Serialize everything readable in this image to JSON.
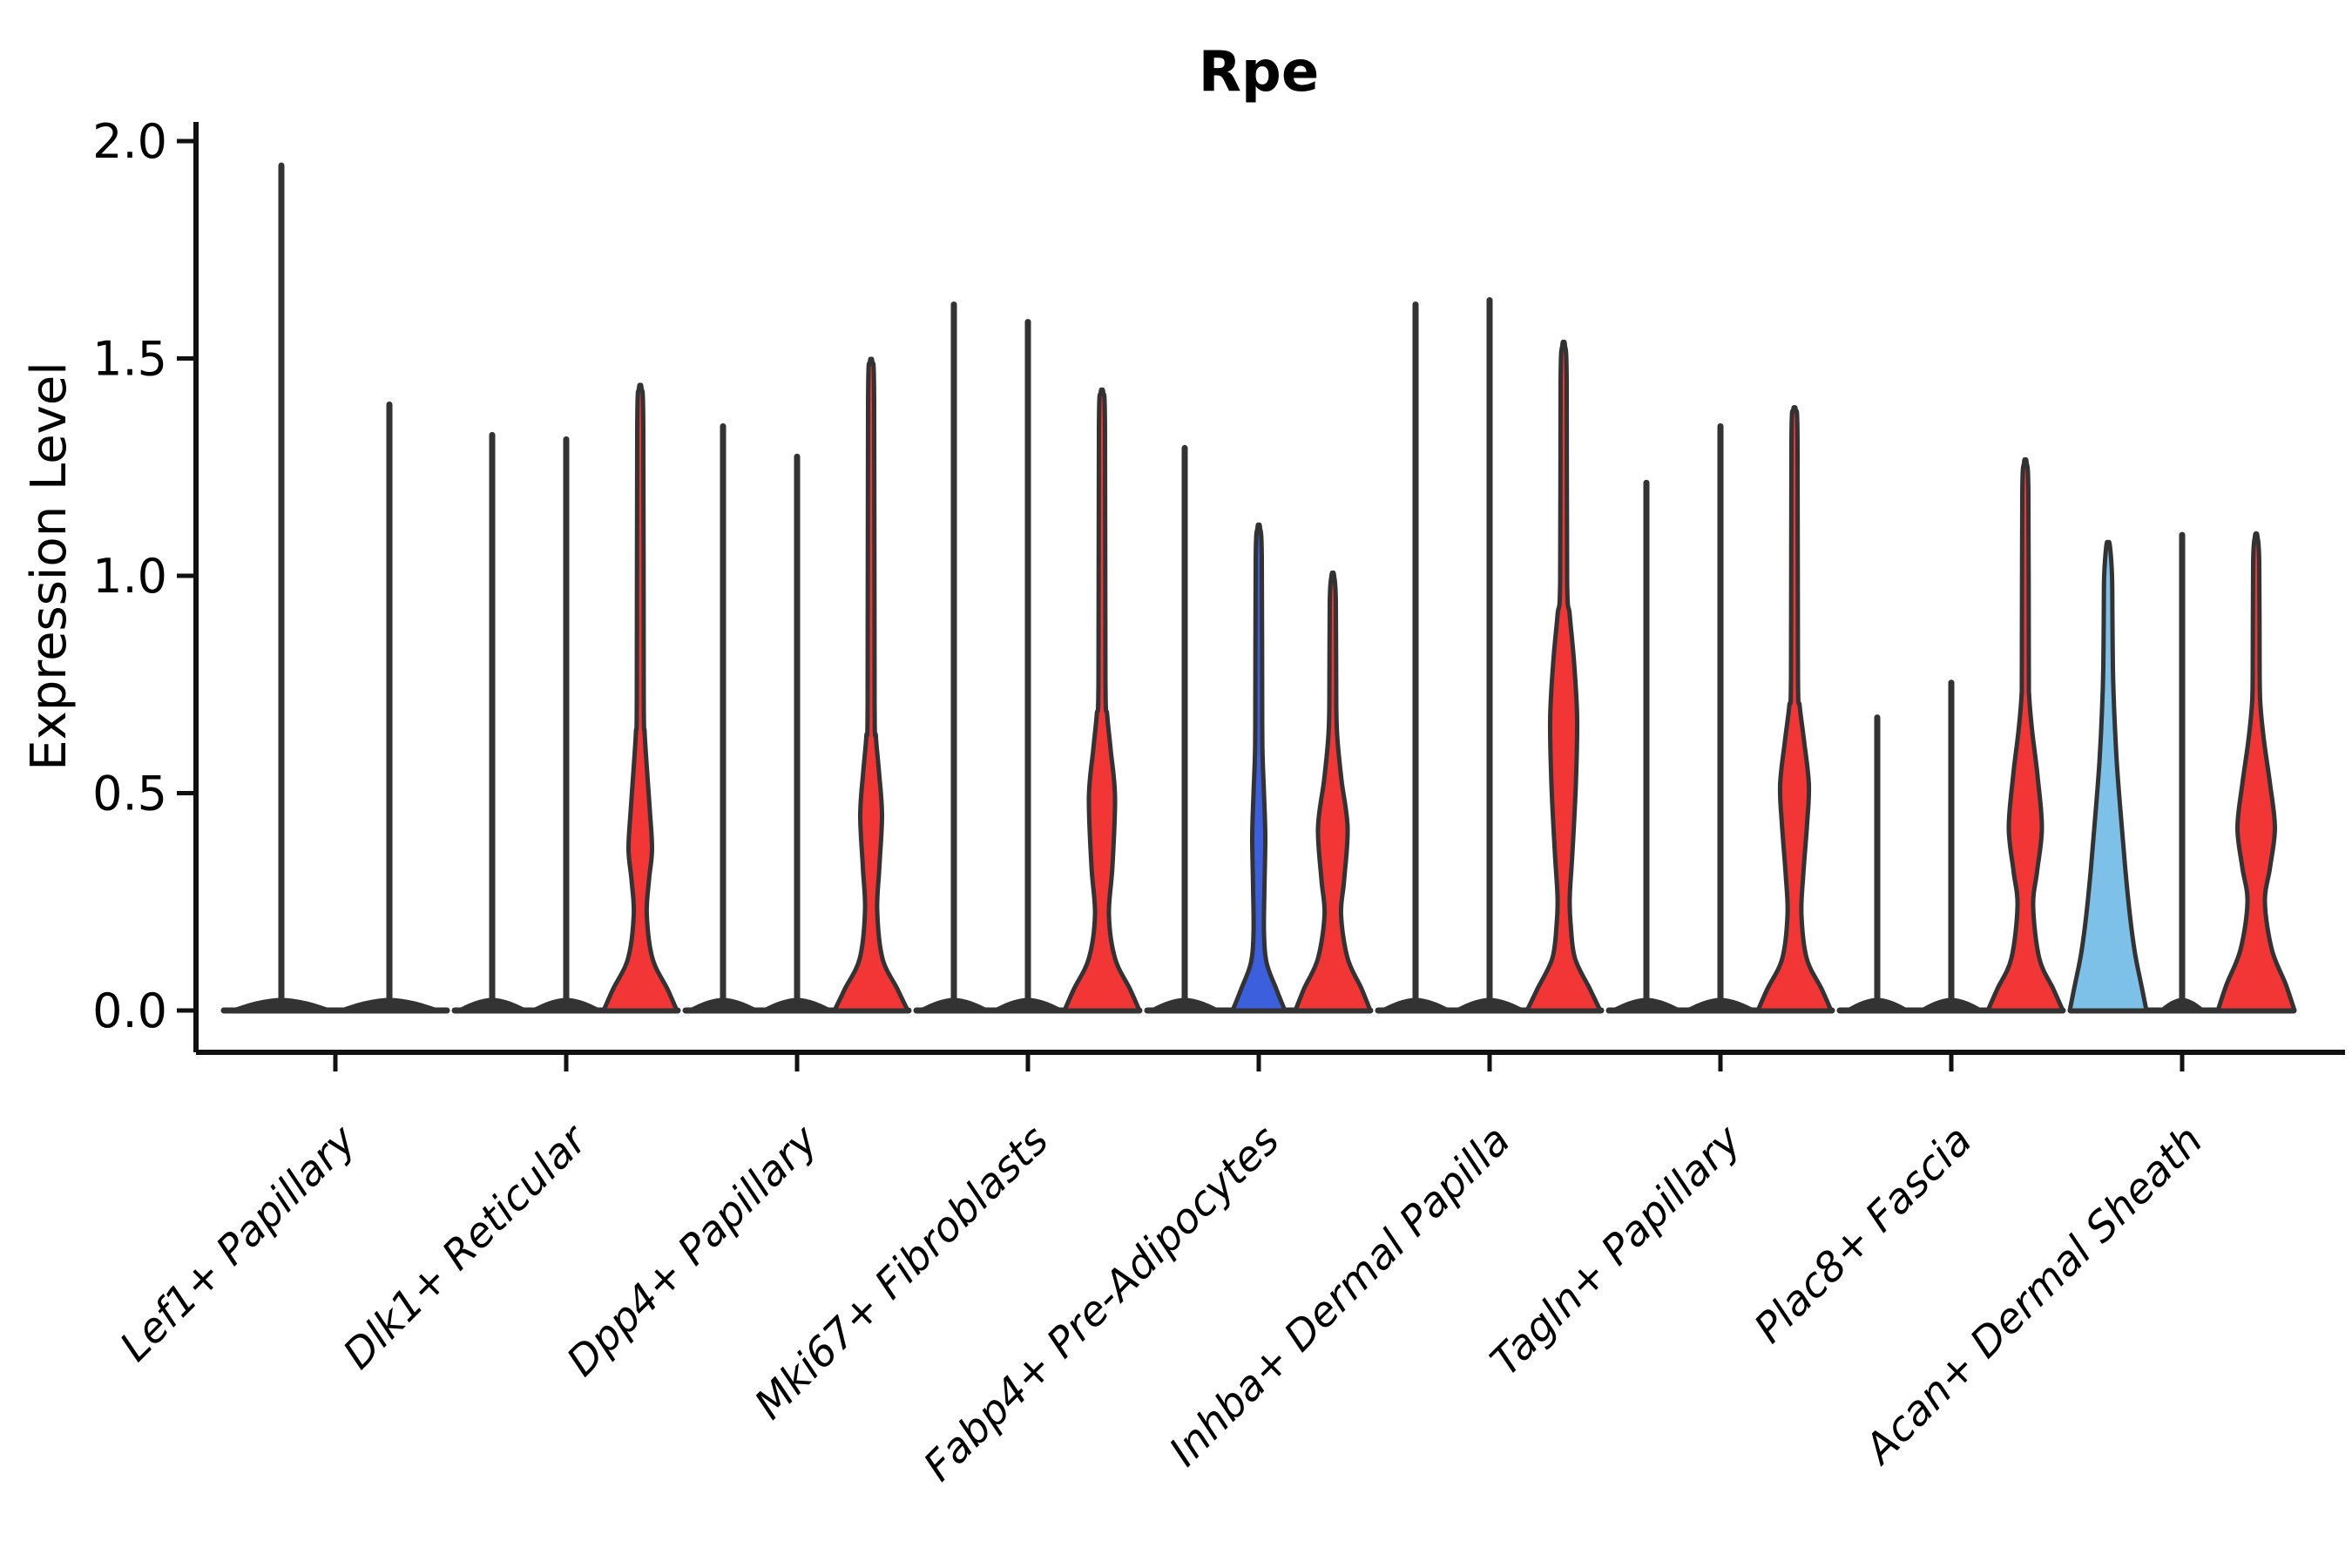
{
  "chart_data": {
    "type": "violin",
    "title": "Rpe",
    "ylabel": "Expression Level",
    "xlabel": "",
    "ylim": [
      -0.1,
      2.05
    ],
    "yticks": [
      "0.0",
      "0.5",
      "1.0",
      "1.5",
      "2.0"
    ],
    "grid": false,
    "legend": false,
    "colors": {
      "red": "#F23535",
      "blue": "#3C5FDE",
      "lightblue": "#7EC1E8",
      "outline": "#333333",
      "axis": "#111111"
    },
    "categories": [
      "Lef1+ Papillary",
      "Dlk1+ Reticular",
      "Dpp4+ Papillary",
      "Mki67+ Fibroblasts",
      "Fabp4+ Pre-Adipocytes",
      "Inhba+ Dermal Papilla",
      "Tagln+ Papillary",
      "Plac8+ Fascia",
      "Acan+ Dermal Sheath"
    ],
    "groups": [
      {
        "category": "Lef1+ Papillary",
        "violins": [
          {
            "kind": "spike",
            "color": "none",
            "peak": 1.95,
            "base_hw": 58
          },
          {
            "kind": "spike",
            "color": "none",
            "peak": 1.4,
            "base_hw": 58
          }
        ]
      },
      {
        "category": "Dlk1+ Reticular",
        "violins": [
          {
            "kind": "spike",
            "color": "none",
            "peak": 1.33,
            "base_hw": 40
          },
          {
            "kind": "spike",
            "color": "none",
            "peak": 1.32,
            "base_hw": 40
          },
          {
            "kind": "violin",
            "color": "red",
            "peak": 1.43,
            "profile": [
              [
                0,
                42
              ],
              [
                0.05,
                31
              ],
              [
                0.12,
                14
              ],
              [
                0.22,
                7.5
              ],
              [
                0.3,
                10
              ],
              [
                0.37,
                13.5
              ],
              [
                0.46,
                11
              ],
              [
                0.56,
                7.5
              ],
              [
                0.64,
                5
              ],
              [
                0.72,
                4
              ],
              [
                1.34,
                3.5
              ],
              [
                1.43,
                1.5
              ]
            ]
          }
        ]
      },
      {
        "category": "Dpp4+ Papillary",
        "violins": [
          {
            "kind": "spike",
            "color": "none",
            "peak": 1.35,
            "base_hw": 40
          },
          {
            "kind": "spike",
            "color": "none",
            "peak": 1.28,
            "base_hw": 40
          },
          {
            "kind": "violin",
            "color": "red",
            "peak": 1.49,
            "profile": [
              [
                0,
                42
              ],
              [
                0.05,
                30
              ],
              [
                0.12,
                13
              ],
              [
                0.23,
                7
              ],
              [
                0.33,
                9.5
              ],
              [
                0.45,
                12.5
              ],
              [
                0.55,
                9
              ],
              [
                0.63,
                5.5
              ],
              [
                0.71,
                4
              ],
              [
                1.4,
                3.5
              ],
              [
                1.49,
                1.5
              ]
            ]
          }
        ]
      },
      {
        "category": "Mki67+ Fibroblasts",
        "violins": [
          {
            "kind": "spike",
            "color": "none",
            "peak": 1.63,
            "base_hw": 40
          },
          {
            "kind": "spike",
            "color": "none",
            "peak": 1.59,
            "base_hw": 40
          },
          {
            "kind": "violin",
            "color": "red",
            "peak": 1.42,
            "profile": [
              [
                0,
                43
              ],
              [
                0.05,
                32
              ],
              [
                0.12,
                15
              ],
              [
                0.22,
                8
              ],
              [
                0.33,
                12
              ],
              [
                0.49,
                15
              ],
              [
                0.6,
                10
              ],
              [
                0.68,
                6
              ],
              [
                0.76,
                4
              ],
              [
                1.34,
                3.5
              ],
              [
                1.42,
                1.5
              ]
            ]
          }
        ]
      },
      {
        "category": "Fabp4+ Pre-Adipocytes",
        "violins": [
          {
            "kind": "spike",
            "color": "none",
            "peak": 1.3,
            "base_hw": 40
          },
          {
            "kind": "violin",
            "color": "blue",
            "peak": 1.11,
            "profile": [
              [
                0,
                30
              ],
              [
                0.05,
                20
              ],
              [
                0.11,
                9
              ],
              [
                0.18,
                6
              ],
              [
                0.28,
                6.5
              ],
              [
                0.4,
                7.5
              ],
              [
                0.5,
                6
              ],
              [
                0.58,
                4.5
              ],
              [
                0.66,
                4
              ],
              [
                1.04,
                3.5
              ],
              [
                1.11,
                1.5
              ]
            ]
          },
          {
            "kind": "violin",
            "color": "red",
            "peak": 1.0,
            "profile": [
              [
                0,
                43
              ],
              [
                0.05,
                33
              ],
              [
                0.12,
                17
              ],
              [
                0.22,
                9.5
              ],
              [
                0.3,
                13
              ],
              [
                0.42,
                17
              ],
              [
                0.53,
                10
              ],
              [
                0.62,
                5.5
              ],
              [
                0.7,
                4
              ],
              [
                0.94,
                3.5
              ],
              [
                1.0,
                1.5
              ]
            ]
          }
        ]
      },
      {
        "category": "Inhba+ Dermal Papilla",
        "violins": [
          {
            "kind": "spike",
            "color": "none",
            "peak": 1.63,
            "base_hw": 40
          },
          {
            "kind": "spike",
            "color": "none",
            "peak": 1.64,
            "base_hw": 40
          },
          {
            "kind": "violin",
            "color": "red",
            "peak": 1.53,
            "profile": [
              [
                0,
                42
              ],
              [
                0.05,
                30
              ],
              [
                0.12,
                13
              ],
              [
                0.2,
                8
              ],
              [
                0.26,
                7
              ],
              [
                0.36,
                10
              ],
              [
                0.52,
                14
              ],
              [
                0.67,
                15.5
              ],
              [
                0.8,
                12
              ],
              [
                0.91,
                7
              ],
              [
                0.99,
                4
              ],
              [
                1.45,
                3.5
              ],
              [
                1.53,
                1.5
              ]
            ]
          }
        ]
      },
      {
        "category": "Tagln+ Papillary",
        "violins": [
          {
            "kind": "spike",
            "color": "none",
            "peak": 1.22,
            "base_hw": 40
          },
          {
            "kind": "spike",
            "color": "none",
            "peak": 1.35,
            "base_hw": 40
          },
          {
            "kind": "violin",
            "color": "red",
            "peak": 1.38,
            "profile": [
              [
                0,
                42
              ],
              [
                0.05,
                31
              ],
              [
                0.12,
                14
              ],
              [
                0.22,
                8
              ],
              [
                0.31,
                10
              ],
              [
                0.43,
                14.5
              ],
              [
                0.52,
                16.5
              ],
              [
                0.62,
                11
              ],
              [
                0.7,
                6
              ],
              [
                0.77,
                4
              ],
              [
                1.31,
                3.5
              ],
              [
                1.38,
                1.5
              ]
            ]
          }
        ]
      },
      {
        "category": "Plac8+ Fascia",
        "violins": [
          {
            "kind": "spike",
            "color": "none",
            "peak": 0.68,
            "base_hw": 36
          },
          {
            "kind": "spike",
            "color": "none",
            "peak": 0.76,
            "base_hw": 36
          },
          {
            "kind": "violin",
            "color": "red",
            "peak": 1.26,
            "profile": [
              [
                0,
                43
              ],
              [
                0.05,
                32
              ],
              [
                0.12,
                16
              ],
              [
                0.24,
                9
              ],
              [
                0.32,
                13.5
              ],
              [
                0.42,
                19
              ],
              [
                0.54,
                14
              ],
              [
                0.64,
                8
              ],
              [
                0.72,
                4.5
              ],
              [
                0.79,
                4
              ],
              [
                1.19,
                3.5
              ],
              [
                1.26,
                1.5
              ]
            ]
          }
        ]
      },
      {
        "category": "Acan+ Dermal Sheath",
        "violins": [
          {
            "kind": "violin",
            "color": "lightblue",
            "peak": 1.07,
            "profile": [
              [
                0,
                44
              ],
              [
                0.06,
                38
              ],
              [
                0.13,
                31
              ],
              [
                0.22,
                25
              ],
              [
                0.32,
                20
              ],
              [
                0.44,
                15
              ],
              [
                0.57,
                10
              ],
              [
                0.69,
                7
              ],
              [
                0.79,
                5.5
              ],
              [
                0.9,
                5
              ],
              [
                1.0,
                4.5
              ],
              [
                1.07,
                2
              ]
            ]
          },
          {
            "kind": "spike",
            "color": "none",
            "peak": 1.1,
            "base_hw": 25
          },
          {
            "kind": "violin",
            "color": "red",
            "peak": 1.09,
            "profile": [
              [
                0,
                44
              ],
              [
                0.06,
                34
              ],
              [
                0.14,
                18
              ],
              [
                0.25,
                10
              ],
              [
                0.33,
                16
              ],
              [
                0.42,
                21.5
              ],
              [
                0.52,
                16
              ],
              [
                0.62,
                9
              ],
              [
                0.7,
                5
              ],
              [
                0.77,
                4
              ],
              [
                1.03,
                3.5
              ],
              [
                1.09,
                1.5
              ]
            ]
          }
        ]
      }
    ]
  }
}
